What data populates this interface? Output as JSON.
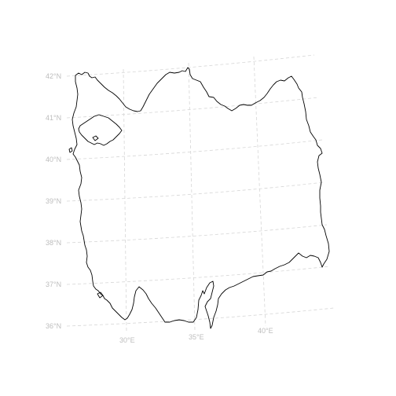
{
  "map": {
    "latitude_labels": [
      "42°N",
      "41°N",
      "40°N",
      "39°N",
      "38°N",
      "37°N",
      "36°N"
    ],
    "longitude_labels": [
      "30°E",
      "35°E",
      "40°E"
    ],
    "graticule": "dashed",
    "colors": {
      "coastline": "#000000",
      "graticule": "#d6d6d6",
      "labels": "#bdbdbd",
      "background": "#ffffff"
    }
  }
}
